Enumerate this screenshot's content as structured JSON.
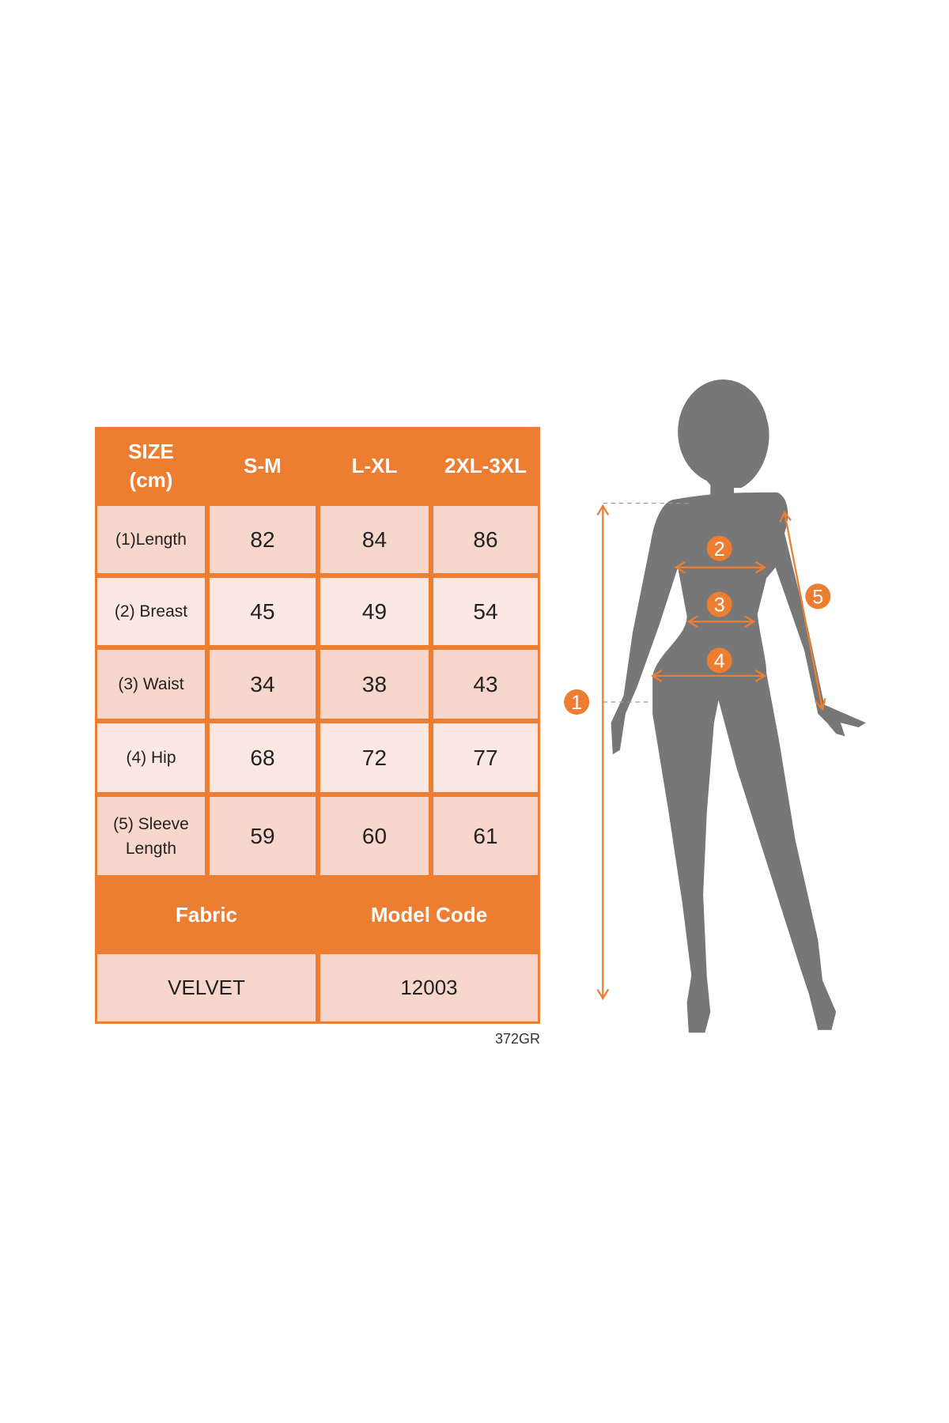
{
  "size_table": {
    "header": [
      "SIZE\n(cm)",
      "S-M",
      "L-XL",
      "2XL-3XL"
    ],
    "rows": [
      {
        "label": "(1)Length",
        "values": [
          "82",
          "84",
          "86"
        ]
      },
      {
        "label": "(2) Breast",
        "values": [
          "45",
          "49",
          "54"
        ]
      },
      {
        "label": "(3) Waist",
        "values": [
          "34",
          "38",
          "43"
        ]
      },
      {
        "label": "(4) Hip",
        "values": [
          "68",
          "72",
          "77"
        ]
      },
      {
        "label": "(5) Sleeve\nLength",
        "values": [
          "59",
          "60",
          "61"
        ]
      }
    ],
    "footer_headers": [
      "Fabric",
      "Model Code"
    ],
    "footer_values": [
      "VELVET",
      "12003"
    ]
  },
  "product_code": "372GR",
  "figure": {
    "markers": [
      "1",
      "2",
      "3",
      "4",
      "5"
    ]
  },
  "colors": {
    "accent": "#ED7D31",
    "cell_dark": "#F7D6CC",
    "cell_light": "#FBE8E2",
    "silhouette": "#777777"
  }
}
